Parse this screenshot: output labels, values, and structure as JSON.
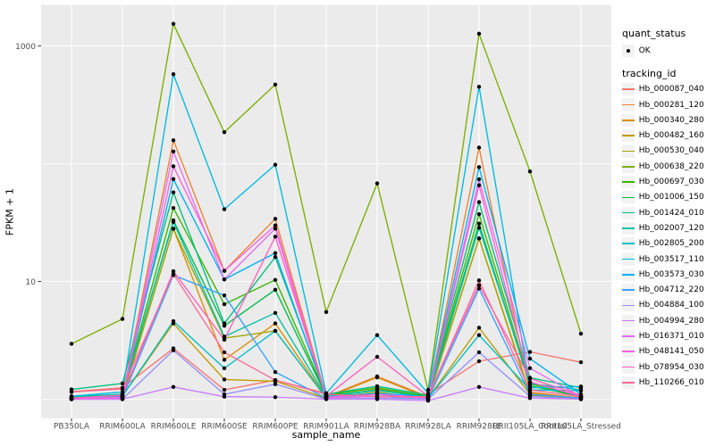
{
  "chart_data": {
    "type": "line",
    "title": "",
    "xlabel": "sample_name",
    "ylabel": "FPKM + 1",
    "y_scale": "log10",
    "y_major_ticks": [
      10,
      1000
    ],
    "y_minor_gridlines": [
      1,
      100
    ],
    "grid": true,
    "panel_bg": "#EBEBEB",
    "grid_color": "#FFFFFF",
    "key_bg": "#F2F2F2",
    "axis_text_color": "#4D4D4D",
    "tick_color": "#333333",
    "point_color": "#000000",
    "legend_position": "right",
    "categories": [
      "PB350LA",
      "RRIM600LA",
      "RRIM600LE",
      "RRIM600SE",
      "RRIM600PE",
      "RRIM901LA",
      "RRIM928BA",
      "RRIM928LA",
      "RRIM928LE",
      "RRII105LA_Control",
      "RRII105LA_Stressed"
    ],
    "legend": {
      "quant_status": {
        "title": "quant_status",
        "entries": [
          "OK"
        ]
      },
      "tracking_id_title": "tracking_id"
    },
    "series": [
      {
        "name": "Hb_000087_040",
        "color": "#F8766D",
        "values": [
          1.16,
          1.25,
          2.7,
          1.2,
          1.45,
          1.12,
          1.05,
          1.1,
          2.1,
          2.52,
          2.06
        ]
      },
      {
        "name": "Hb_000281_120",
        "color": "#EA8331",
        "values": [
          1.0,
          1.05,
          158,
          12.3,
          34,
          1.05,
          1.56,
          1.05,
          137,
          1.15,
          1.02
        ]
      },
      {
        "name": "Hb_000340_280",
        "color": "#D89000",
        "values": [
          1.0,
          1.03,
          28,
          2.16,
          4.4,
          1.03,
          1.53,
          1.03,
          23.2,
          1.12,
          1.02
        ]
      },
      {
        "name": "Hb_000482_160",
        "color": "#C09B00",
        "values": [
          1.02,
          1.06,
          4.4,
          1.47,
          1.42,
          1.02,
          1.22,
          1.02,
          4.04,
          1.1,
          1.03
        ]
      },
      {
        "name": "Hb_000530_040",
        "color": "#A3A500",
        "values": [
          1.0,
          1.02,
          28,
          3.3,
          3.8,
          1.02,
          1.15,
          1.0,
          23.2,
          1.08,
          1.0
        ]
      },
      {
        "name": "Hb_000638_220",
        "color": "#7CAE00",
        "values": [
          2.95,
          4.8,
          1540,
          185,
          470,
          5.5,
          68,
          1.2,
          1270,
          86,
          3.6
        ]
      },
      {
        "name": "Hb_000697_030",
        "color": "#39B600",
        "values": [
          1.03,
          1.1,
          42,
          6.4,
          10.3,
          1.08,
          1.25,
          1.05,
          37.3,
          1.35,
          1.06
        ]
      },
      {
        "name": "Hb_001006_150",
        "color": "#00BB4E",
        "values": [
          1.02,
          1.08,
          33,
          4.2,
          8.5,
          1.06,
          1.2,
          1.04,
          31,
          1.3,
          1.05
        ]
      },
      {
        "name": "Hb_001424_010",
        "color": "#00BF7D",
        "values": [
          1.21,
          1.36,
          57,
          4.4,
          16.1,
          1.1,
          1.29,
          1.08,
          47.2,
          1.52,
          1.25
        ]
      },
      {
        "name": "Hb_002007_120",
        "color": "#00C1A3",
        "values": [
          1.05,
          1.1,
          32,
          3.4,
          5.4,
          1.05,
          1.19,
          1.04,
          28.6,
          1.36,
          1.2
        ]
      },
      {
        "name": "Hb_002805_200",
        "color": "#00BFC4",
        "values": [
          1.02,
          1.06,
          4.6,
          1.83,
          3.8,
          1.03,
          1.1,
          1.02,
          3.5,
          1.2,
          1.18
        ]
      },
      {
        "name": "Hb_003517_110",
        "color": "#00BAE0",
        "values": [
          1.06,
          1.15,
          575,
          41,
          98,
          1.12,
          3.5,
          1.12,
          450,
          1.25,
          1.28
        ]
      },
      {
        "name": "Hb_003573_030",
        "color": "#00B0F6",
        "values": [
          1.0,
          1.05,
          74,
          10.4,
          17.4,
          1.05,
          1.12,
          1.05,
          93.5,
          2.21,
          1.1
        ]
      },
      {
        "name": "Hb_004712_220",
        "color": "#35A2FF",
        "values": [
          1.0,
          1.03,
          11.3,
          7.6,
          1.7,
          1.02,
          1.06,
          1.0,
          8.7,
          1.1,
          1.02
        ]
      },
      {
        "name": "Hb_004884_100",
        "color": "#9590FF",
        "values": [
          1.0,
          1.0,
          2.6,
          1.1,
          1.34,
          1.0,
          1.02,
          1.0,
          2.5,
          1.06,
          1.0
        ]
      },
      {
        "name": "Hb_004994_280",
        "color": "#C77CFF",
        "values": [
          1.0,
          1.0,
          1.27,
          1.05,
          1.04,
          1.0,
          1.0,
          0.97,
          1.27,
          1.02,
          1.0
        ]
      },
      {
        "name": "Hb_016371_010",
        "color": "#E76BF3",
        "values": [
          1.0,
          1.02,
          127,
          10.4,
          28.1,
          1.02,
          1.06,
          1.02,
          73.7,
          1.83,
          1.05
        ]
      },
      {
        "name": "Hb_048141_050",
        "color": "#FA62DB",
        "values": [
          1.01,
          1.04,
          95,
          12.3,
          29.9,
          1.04,
          1.1,
          1.03,
          65.5,
          1.4,
          1.06
        ]
      },
      {
        "name": "Hb_078954_030",
        "color": "#FF62BC",
        "values": [
          1.02,
          1.08,
          12.2,
          3.2,
          24,
          1.06,
          2.29,
          1.06,
          9.3,
          1.5,
          1.08
        ]
      },
      {
        "name": "Hb_110266_010",
        "color": "#FF6A98",
        "values": [
          1.15,
          1.22,
          11.6,
          2.5,
          1.45,
          1.1,
          1.05,
          1.05,
          10.2,
          1.2,
          1.05
        ]
      }
    ]
  }
}
